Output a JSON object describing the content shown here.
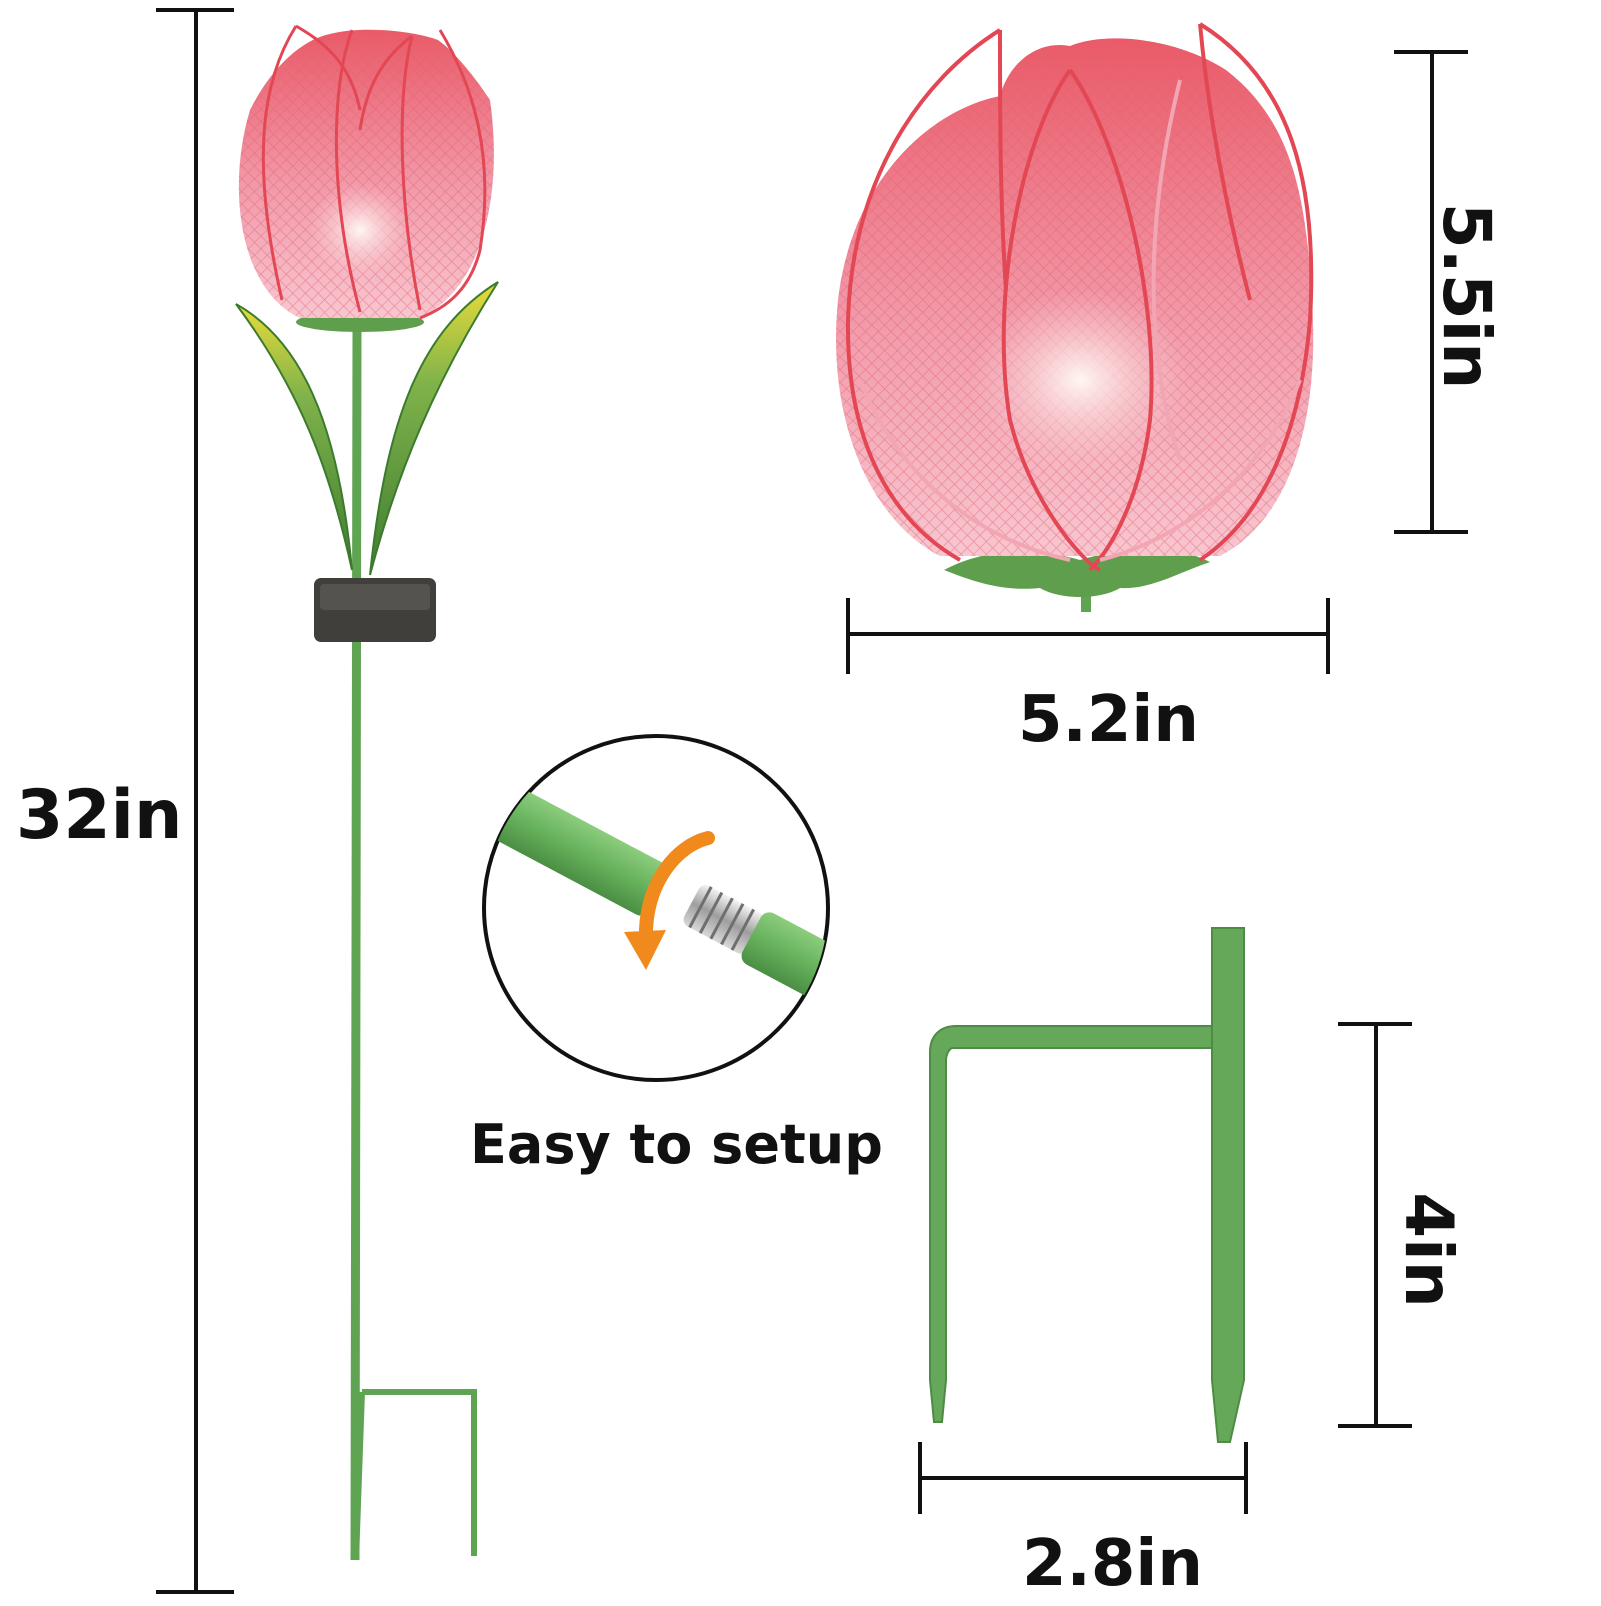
{
  "dimensions": {
    "total_height": "32in",
    "flower_height": "5.5in",
    "flower_width": "5.2in",
    "stake_height": "4in",
    "stake_width": "2.8in"
  },
  "callout": {
    "caption": "Easy to setup"
  },
  "colors": {
    "petal_light": "#f6b8c4",
    "petal_mid": "#ef8fa1",
    "petal_dark": "#e53f4f",
    "stem_green": "#5fa452",
    "leaf_green": "#4f8f3c",
    "leaf_yellow": "#e9dc3a",
    "solar_panel": "#3e3e3c",
    "arrow_orange": "#f08a1c",
    "dimension_line": "#111111"
  },
  "icons": {
    "rotate_arrow": "rotate-arrow-icon",
    "thread": "screw-thread-icon"
  }
}
